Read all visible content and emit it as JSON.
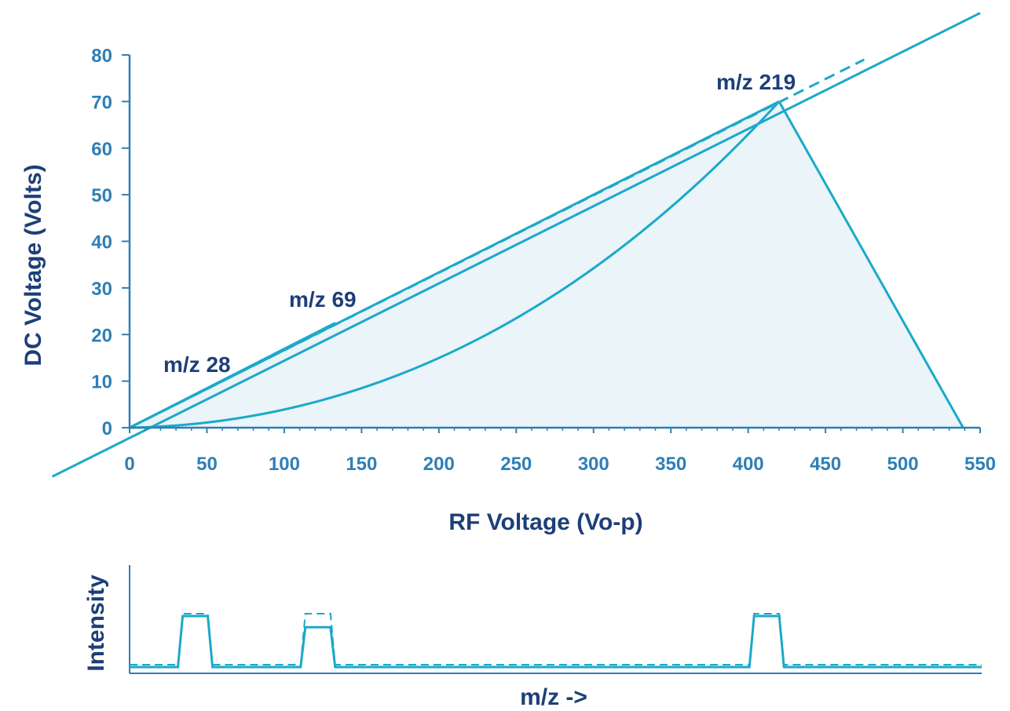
{
  "colors": {
    "line": "#1ba9c9",
    "axis": "#2f7fb5",
    "tick_text": "#2f7fb5",
    "label_text": "#1d3f78",
    "fill": "#eaf4f9",
    "background": "#ffffff"
  },
  "chart_data": [
    {
      "type": "line",
      "xlabel": "RF Voltage (Vo-p)",
      "ylabel": "DC Voltage (Volts)",
      "xlim": [
        0,
        550
      ],
      "ylim": [
        0,
        80
      ],
      "xticks": [
        "0",
        "50",
        "100",
        "150",
        "200",
        "250",
        "300",
        "350",
        "400",
        "450",
        "500",
        "550"
      ],
      "yticks": [
        "0",
        "10",
        "20",
        "30",
        "40",
        "50",
        "60",
        "70",
        "80"
      ],
      "grid": false,
      "stability_regions": [
        {
          "name": "m/z 28",
          "apex": [
            54,
            9
          ],
          "points": [
            [
              0,
              0
            ],
            [
              54,
              9
            ],
            [
              69,
              0
            ]
          ]
        },
        {
          "name": "m/z 69",
          "apex": [
            133,
            22.5
          ],
          "points": [
            [
              0,
              0
            ],
            [
              133,
              22.5
            ],
            [
              170,
              0
            ]
          ]
        },
        {
          "name": "m/z 219",
          "apex": [
            420,
            70
          ],
          "points": [
            [
              0,
              0
            ],
            [
              420,
              70
            ],
            [
              539,
              0
            ]
          ]
        }
      ],
      "scan_lines": [
        {
          "style": "solid",
          "points": [
            [
              -50,
              -10.5
            ],
            [
              550,
              89
            ]
          ]
        },
        {
          "style": "dashed",
          "points": [
            [
              0,
              0
            ],
            [
              475,
              79
            ]
          ]
        }
      ]
    },
    {
      "type": "line",
      "xlabel": "m/z ->",
      "ylabel": "Intensity",
      "series": [
        {
          "style": "solid",
          "peaks": [
            {
              "position": 28,
              "height": 1.0
            },
            {
              "position": 69,
              "height": 0.78
            },
            {
              "position": 219,
              "height": 1.0
            }
          ]
        },
        {
          "style": "dashed",
          "peaks": [
            {
              "position": 28,
              "height": 1.0
            },
            {
              "position": 69,
              "height": 1.0
            },
            {
              "position": 219,
              "height": 1.0
            }
          ]
        }
      ]
    }
  ],
  "labels": {
    "peak_28": "m/z 28",
    "peak_69": "m/z 69",
    "peak_219": "m/z 219",
    "x_axis_title": "RF Voltage (Vo-p)",
    "y_axis_title": "DC Voltage (Volts)",
    "spectrum_x_title": "m/z ->",
    "spectrum_y_title": "Intensity"
  }
}
